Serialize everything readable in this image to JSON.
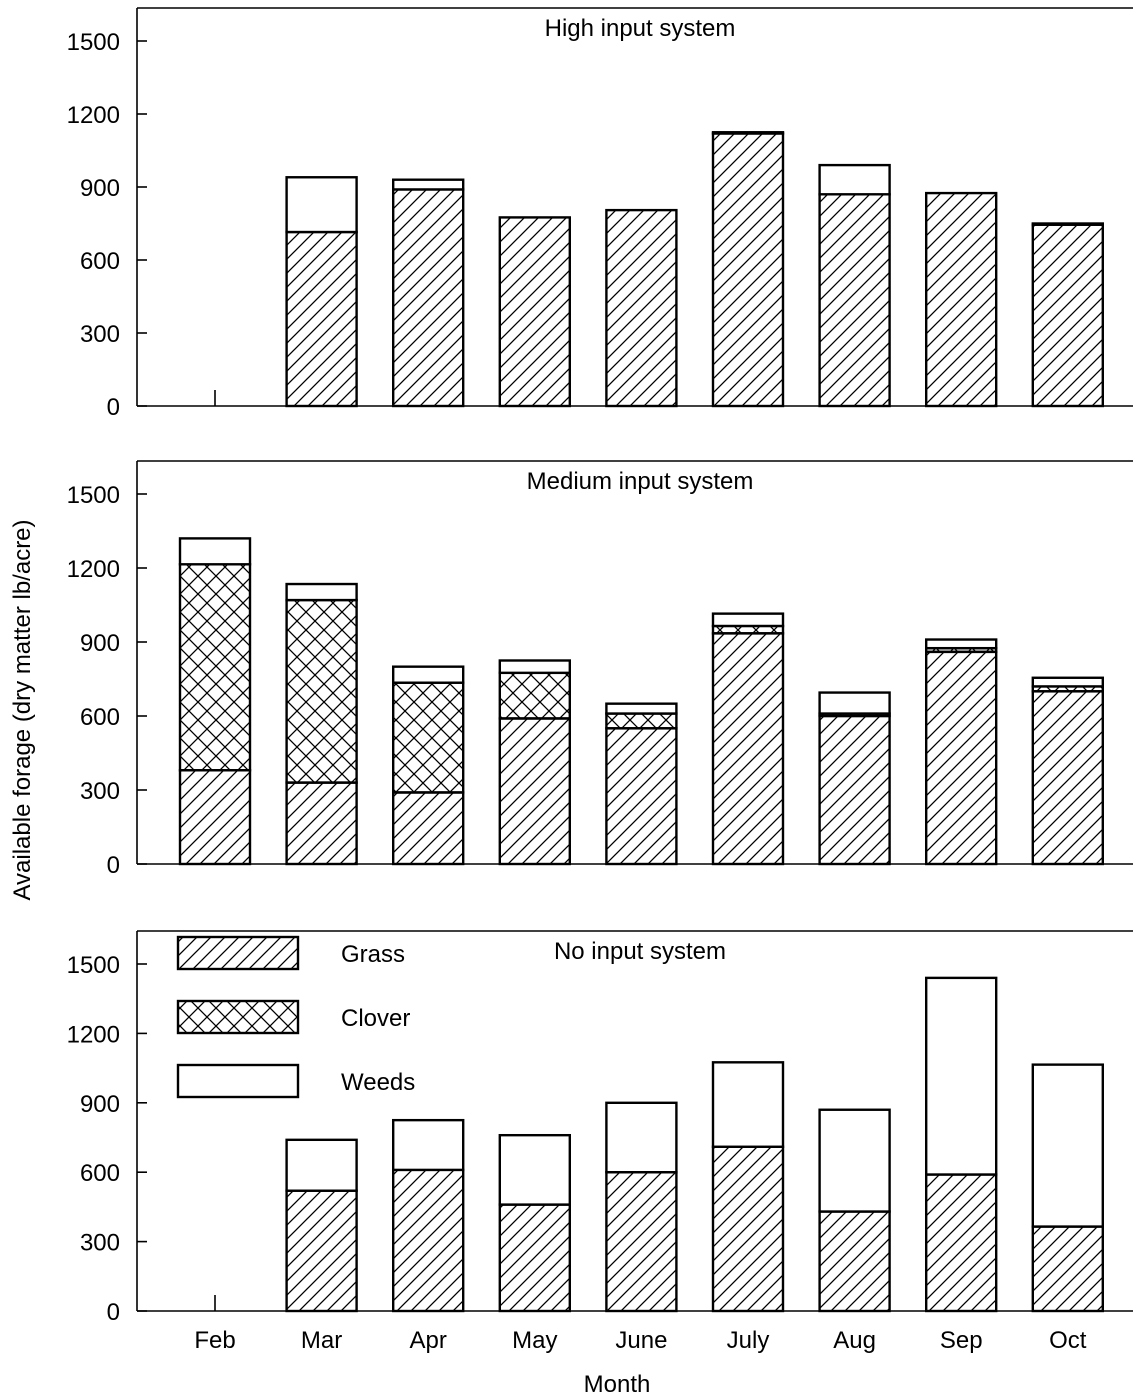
{
  "chart_data": {
    "type": "bar",
    "stacked": true,
    "categories": [
      "Feb",
      "Mar",
      "Apr",
      "May",
      "June",
      "July",
      "Aug",
      "Sep",
      "Oct"
    ],
    "xlabel": "Month",
    "ylabel": "Available forage (dry matter lb/acre)",
    "ylim": [
      0,
      1500
    ],
    "yticks": [
      "0",
      "300",
      "600",
      "900",
      "1200",
      "1500"
    ],
    "grid": false,
    "legend": {
      "placement": "top-left of bottom panel",
      "entries": [
        {
          "label": "Grass",
          "pattern": "diagonal-hatch"
        },
        {
          "label": "Clover",
          "pattern": "cross-hatch"
        },
        {
          "label": "Weeds",
          "pattern": "blank"
        }
      ]
    },
    "panels": [
      {
        "title": "High input system",
        "series": [
          {
            "name": "Grass",
            "values": [
              0,
              715,
              890,
              775,
              805,
              1120,
              870,
              875,
              745
            ]
          },
          {
            "name": "Clover",
            "values": [
              0,
              0,
              0,
              0,
              0,
              0,
              0,
              0,
              0
            ]
          },
          {
            "name": "Weeds",
            "values": [
              0,
              225,
              40,
              0,
              0,
              5,
              120,
              0,
              5
            ]
          }
        ]
      },
      {
        "title": "Medium input system",
        "series": [
          {
            "name": "Grass",
            "values": [
              380,
              330,
              290,
              590,
              550,
              935,
              600,
              860,
              700
            ]
          },
          {
            "name": "Clover",
            "values": [
              835,
              740,
              445,
              185,
              60,
              30,
              10,
              15,
              20
            ]
          },
          {
            "name": "Weeds",
            "values": [
              105,
              65,
              65,
              50,
              40,
              50,
              85,
              35,
              35
            ]
          }
        ]
      },
      {
        "title": "No input system",
        "series": [
          {
            "name": "Grass",
            "values": [
              0,
              520,
              610,
              460,
              600,
              710,
              430,
              590,
              365
            ]
          },
          {
            "name": "Clover",
            "values": [
              0,
              0,
              0,
              0,
              0,
              0,
              0,
              0,
              0
            ]
          },
          {
            "name": "Weeds",
            "values": [
              0,
              220,
              215,
              300,
              300,
              365,
              440,
              850,
              700
            ]
          }
        ]
      }
    ]
  }
}
